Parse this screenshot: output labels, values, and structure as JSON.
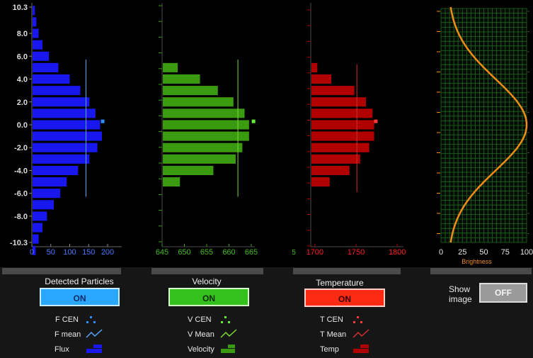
{
  "colors": {
    "particles": "#1717ee",
    "particles_marker": "#2a8fff",
    "particles_line": "#55aaff",
    "velocity": "#3a9a10",
    "velocity_marker": "#66ee33",
    "velocity_line": "#7bdc3a",
    "temperature": "#b00000",
    "temperature_marker": "#ff3a3a",
    "temperature_line": "#d03030",
    "brightness_curve": "#f08c1a",
    "grid_green": "#1f6a1f"
  },
  "chart_data": [
    {
      "type": "bar",
      "orientation": "horizontal",
      "name": "particles",
      "y_ticks": [
        "10.3",
        "8.0",
        "6.0",
        "4.0",
        "2.0",
        "0.0",
        "-2.0",
        "-4.0",
        "-6.0",
        "-8.0",
        "-10.3"
      ],
      "ylim": [
        -10.3,
        10.3
      ],
      "x_ticks": [
        "0",
        "50",
        "100",
        "150",
        "200"
      ],
      "xlim": [
        0,
        200
      ],
      "bars": [
        {
          "y": 10,
          "value": 8
        },
        {
          "y": 9,
          "value": 12
        },
        {
          "y": 8,
          "value": 18
        },
        {
          "y": 7,
          "value": 28
        },
        {
          "y": 6,
          "value": 45
        },
        {
          "y": 5,
          "value": 70
        },
        {
          "y": 4,
          "value": 100
        },
        {
          "y": 3,
          "value": 128
        },
        {
          "y": 2,
          "value": 152
        },
        {
          "y": 1,
          "value": 168
        },
        {
          "y": 0,
          "value": 180
        },
        {
          "y": -1,
          "value": 185
        },
        {
          "y": -2,
          "value": 173
        },
        {
          "y": -3,
          "value": 152
        },
        {
          "y": -4,
          "value": 122
        },
        {
          "y": -5,
          "value": 92
        },
        {
          "y": -6,
          "value": 75
        },
        {
          "y": -7,
          "value": 58
        },
        {
          "y": -8,
          "value": 40
        },
        {
          "y": -9,
          "value": 28
        },
        {
          "y": -10,
          "value": 18
        },
        {
          "y": -11,
          "value": 10
        }
      ],
      "mean_line": {
        "x": 143,
        "y_from": -6.3,
        "y_to": 5.7
      },
      "centroid": {
        "x": 187,
        "y": 0.3
      }
    },
    {
      "type": "bar",
      "orientation": "horizontal",
      "name": "velocity",
      "x_ticks": [
        "645",
        "650",
        "655",
        "660",
        "665"
      ],
      "xlim": [
        645,
        665
      ],
      "bars": [
        {
          "y": 5,
          "value": 648.5
        },
        {
          "y": 4,
          "value": 653.5
        },
        {
          "y": 3,
          "value": 657.5
        },
        {
          "y": 2,
          "value": 661
        },
        {
          "y": 1,
          "value": 663.5
        },
        {
          "y": 0,
          "value": 664.5
        },
        {
          "y": -1,
          "value": 664.5
        },
        {
          "y": -2,
          "value": 663
        },
        {
          "y": -3,
          "value": 661.5
        },
        {
          "y": -4,
          "value": 656.5
        },
        {
          "y": -5,
          "value": 649
        }
      ],
      "mean_line": {
        "x": 662,
        "y_from": -6.3,
        "y_to": 5.7
      },
      "centroid": {
        "x": 665.5,
        "y": 0.3
      }
    },
    {
      "type": "bar",
      "orientation": "horizontal",
      "name": "temperature",
      "x_ticks": [
        "1700",
        "1750",
        "1800"
      ],
      "xlim": [
        1695,
        1805
      ],
      "bars": [
        {
          "y": 5,
          "value": 1703
        },
        {
          "y": 4,
          "value": 1720
        },
        {
          "y": 3,
          "value": 1748
        },
        {
          "y": 2,
          "value": 1762
        },
        {
          "y": 1,
          "value": 1770
        },
        {
          "y": 0,
          "value": 1772
        },
        {
          "y": -1,
          "value": 1772
        },
        {
          "y": -2,
          "value": 1766
        },
        {
          "y": -3,
          "value": 1755
        },
        {
          "y": -4,
          "value": 1742
        },
        {
          "y": -5,
          "value": 1718
        }
      ],
      "mean_line": {
        "x": 1751,
        "y_from": -5.9,
        "y_to": 5.3
      },
      "centroid": {
        "x": 1774,
        "y": 0.3
      },
      "partial_tick": "5"
    },
    {
      "type": "line",
      "name": "brightness",
      "x_ticks": [
        "0",
        "25",
        "50",
        "75",
        "100"
      ],
      "xlim": [
        0,
        100
      ],
      "xlabel": "Brightness",
      "ylim": [
        -10.3,
        10.3
      ],
      "grid": true,
      "curve": {
        "center_y": 0,
        "width": 4.0,
        "min": 8,
        "max": 100
      }
    }
  ],
  "panels": {
    "particles": {
      "title": "Detected Particles",
      "toggle": "ON",
      "legend": [
        "F CEN",
        "F mean",
        "Flux"
      ]
    },
    "velocity": {
      "title": "Velocity",
      "toggle": "ON",
      "legend": [
        "V CEN",
        "V Mean",
        "Velocity"
      ]
    },
    "temperature": {
      "title": "Temperature",
      "toggle": "ON",
      "legend": [
        "T CEN",
        "T Mean",
        "Temp"
      ]
    },
    "image": {
      "label_line1": "Show",
      "label_line2": "image",
      "toggle": "OFF"
    }
  }
}
